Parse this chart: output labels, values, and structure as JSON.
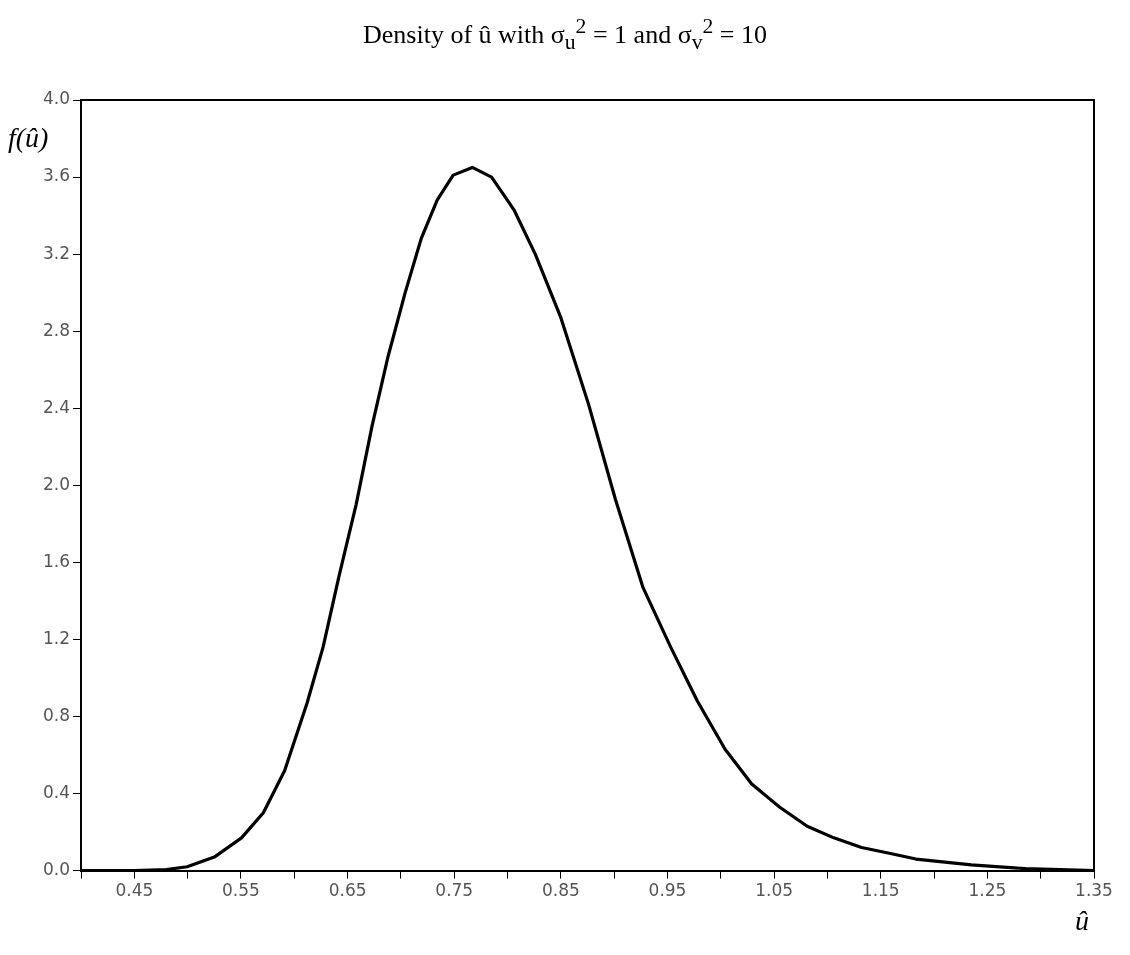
{
  "chart_data": {
    "type": "line",
    "title": "Density of û with σ$_{u}$$^{2}$ = 1 and σ$_{v}$$^{2}$ = 10",
    "xlabel": "û",
    "ylabel": "f(û)",
    "series": [
      {
        "color": "#000000",
        "x": [
          0.4,
          0.45,
          0.48,
          0.4995,
          0.525,
          0.5505,
          0.571,
          0.591,
          0.612,
          0.627,
          0.642,
          0.658,
          0.673,
          0.688,
          0.704,
          0.719,
          0.734,
          0.749,
          0.767,
          0.785,
          0.806,
          0.826,
          0.85,
          0.876,
          0.901,
          0.927,
          0.953,
          0.978,
          1.004,
          1.029,
          1.055,
          1.081,
          1.106,
          1.132,
          1.158,
          1.183,
          1.235,
          1.286,
          1.35
        ],
        "values": [
          0,
          0,
          0.005,
          0.02,
          0.07,
          0.17,
          0.3,
          0.52,
          0.87,
          1.16,
          1.53,
          1.9,
          2.31,
          2.67,
          3.0,
          3.28,
          3.48,
          3.61,
          3.65,
          3.6,
          3.43,
          3.2,
          2.87,
          2.42,
          1.93,
          1.47,
          1.16,
          0.88,
          0.63,
          0.45,
          0.33,
          0.23,
          0.17,
          0.12,
          0.09,
          0.06,
          0.03,
          0.01,
          0
        ]
      }
    ],
    "xlim": [
      0.4,
      1.35
    ],
    "xticks": [
      {
        "value": 0.4,
        "label": null
      },
      0.45,
      {
        "value": 0.5,
        "label": null
      },
      0.55,
      {
        "value": 0.6,
        "label": null
      },
      0.65,
      {
        "value": 0.7,
        "label": null
      },
      0.75,
      {
        "value": 0.8,
        "label": null
      },
      0.85,
      {
        "value": 0.9,
        "label": null
      },
      0.95,
      {
        "value": 1.0,
        "label": null
      },
      1.05,
      {
        "value": 1.1,
        "label": null
      },
      1.15,
      {
        "value": 1.2,
        "label": null
      },
      1.25,
      {
        "value": 1.3,
        "label": null
      },
      1.35
    ],
    "ylim": [
      0,
      4
    ],
    "yticks": [
      {
        "value": 0,
        "label": "0.0"
      },
      0.4,
      0.8,
      1.2,
      1.6,
      {
        "value": 2,
        "label": "2.0"
      },
      2.4,
      2.8,
      3.2,
      3.6,
      {
        "value": 4,
        "label": "4.0"
      }
    ],
    "grid": false,
    "legend": false,
    "marker": "none",
    "line_style": "solid"
  }
}
